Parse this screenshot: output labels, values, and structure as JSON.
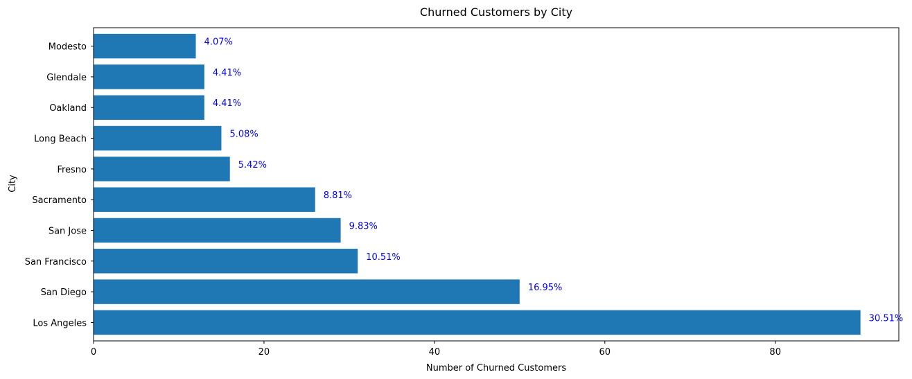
{
  "chart_data": {
    "type": "bar",
    "orientation": "horizontal",
    "title": "Churned Customers by City",
    "xlabel": "Number of Churned Customers",
    "ylabel": "City",
    "categories": [
      "Los Angeles",
      "San Diego",
      "San Francisco",
      "San Jose",
      "Sacramento",
      "Fresno",
      "Long Beach",
      "Oakland",
      "Glendale",
      "Modesto"
    ],
    "values": [
      90,
      50,
      31,
      29,
      26,
      16,
      15,
      13,
      13,
      12
    ],
    "data_labels": [
      "30.51%",
      "16.95%",
      "10.51%",
      "9.83%",
      "8.81%",
      "5.42%",
      "5.08%",
      "4.41%",
      "4.41%",
      "4.07%"
    ],
    "xlim": [
      0,
      94.5
    ],
    "xticks": [
      0,
      20,
      40,
      60,
      80
    ],
    "grid": false,
    "colors": {
      "bar": "#1f77b4",
      "data_label": "#0000ff"
    }
  }
}
